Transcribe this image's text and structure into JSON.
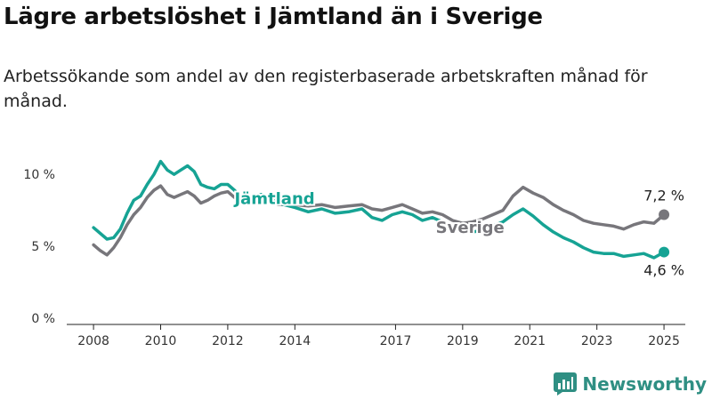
{
  "chart_data": {
    "type": "line",
    "title": "Lägre arbetslöshet i Jämtland än i Sverige",
    "subtitle": "Arbetssökande som andel av den registerbaserade arbetskraften månad för månad.",
    "y_ticks": [
      "0 %",
      "5 %",
      "10 %"
    ],
    "ylim": [
      0,
      11
    ],
    "x_ticks": [
      "2008",
      "2010",
      "2012",
      "2014",
      "2017",
      "2019",
      "2021",
      "2023",
      "2025"
    ],
    "xlim": [
      2007.6,
      2025.9
    ],
    "grid": false,
    "series": [
      {
        "name": "Jämtland",
        "color": "#16a394",
        "end_label": "4,6 %",
        "x": [
          2008.0,
          2008.2,
          2008.4,
          2008.6,
          2008.8,
          2009.0,
          2009.2,
          2009.4,
          2009.6,
          2009.8,
          2010.0,
          2010.2,
          2010.4,
          2010.6,
          2010.8,
          2011.0,
          2011.2,
          2011.4,
          2011.6,
          2011.8,
          2012.0,
          2012.2,
          2012.4,
          2012.6,
          2013.0,
          2013.5,
          2014.0,
          2014.4,
          2014.8,
          2015.2,
          2015.6,
          2016.0,
          2016.3,
          2016.6,
          2016.9,
          2017.2,
          2017.5,
          2017.8,
          2018.1,
          2018.4,
          2018.7,
          2019.0,
          2019.3,
          2019.6,
          2019.9,
          2020.2,
          2020.5,
          2020.8,
          2021.1,
          2021.4,
          2021.7,
          2022.0,
          2022.3,
          2022.6,
          2022.9,
          2023.2,
          2023.5,
          2023.8,
          2024.1,
          2024.4,
          2024.7,
          2025.0
        ],
        "y": [
          6.3,
          5.9,
          5.5,
          5.6,
          6.2,
          7.3,
          8.2,
          8.5,
          9.3,
          10.0,
          10.9,
          10.3,
          10.0,
          10.3,
          10.6,
          10.2,
          9.3,
          9.1,
          9.0,
          9.3,
          9.3,
          8.9,
          8.4,
          8.3,
          8.6,
          8.0,
          7.7,
          7.4,
          7.6,
          7.3,
          7.4,
          7.6,
          7.0,
          6.8,
          7.2,
          7.4,
          7.2,
          6.8,
          7.0,
          6.7,
          6.3,
          6.1,
          6.0,
          6.1,
          6.4,
          6.7,
          7.2,
          7.6,
          7.1,
          6.5,
          6.0,
          5.6,
          5.3,
          4.9,
          4.6,
          4.5,
          4.5,
          4.3,
          4.4,
          4.5,
          4.2,
          4.6
        ]
      },
      {
        "name": "Sverige",
        "color": "#77767b",
        "end_label": "7,2 %",
        "x": [
          2008.0,
          2008.2,
          2008.4,
          2008.6,
          2008.8,
          2009.0,
          2009.2,
          2009.4,
          2009.6,
          2009.8,
          2010.0,
          2010.2,
          2010.4,
          2010.6,
          2010.8,
          2011.0,
          2011.2,
          2011.4,
          2011.6,
          2011.8,
          2012.0,
          2012.2,
          2012.4,
          2012.6,
          2013.0,
          2013.5,
          2014.0,
          2014.4,
          2014.8,
          2015.2,
          2015.6,
          2016.0,
          2016.3,
          2016.6,
          2016.9,
          2017.2,
          2017.5,
          2017.8,
          2018.1,
          2018.4,
          2018.7,
          2019.0,
          2019.3,
          2019.6,
          2019.9,
          2020.2,
          2020.5,
          2020.8,
          2021.1,
          2021.4,
          2021.7,
          2022.0,
          2022.3,
          2022.6,
          2022.9,
          2023.2,
          2023.5,
          2023.8,
          2024.1,
          2024.4,
          2024.7,
          2025.0
        ],
        "y": [
          5.1,
          4.7,
          4.4,
          4.9,
          5.6,
          6.5,
          7.2,
          7.7,
          8.4,
          8.9,
          9.2,
          8.6,
          8.4,
          8.6,
          8.8,
          8.5,
          8.0,
          8.2,
          8.5,
          8.7,
          8.8,
          8.4,
          8.2,
          8.0,
          8.2,
          7.9,
          7.9,
          7.8,
          7.9,
          7.7,
          7.8,
          7.9,
          7.6,
          7.5,
          7.7,
          7.9,
          7.6,
          7.3,
          7.4,
          7.2,
          6.8,
          6.6,
          6.7,
          6.9,
          7.2,
          7.5,
          8.5,
          9.1,
          8.7,
          8.4,
          7.9,
          7.5,
          7.2,
          6.8,
          6.6,
          6.5,
          6.4,
          6.2,
          6.5,
          6.7,
          6.6,
          7.2
        ]
      }
    ]
  },
  "brand": {
    "name": "Newsworthy"
  }
}
